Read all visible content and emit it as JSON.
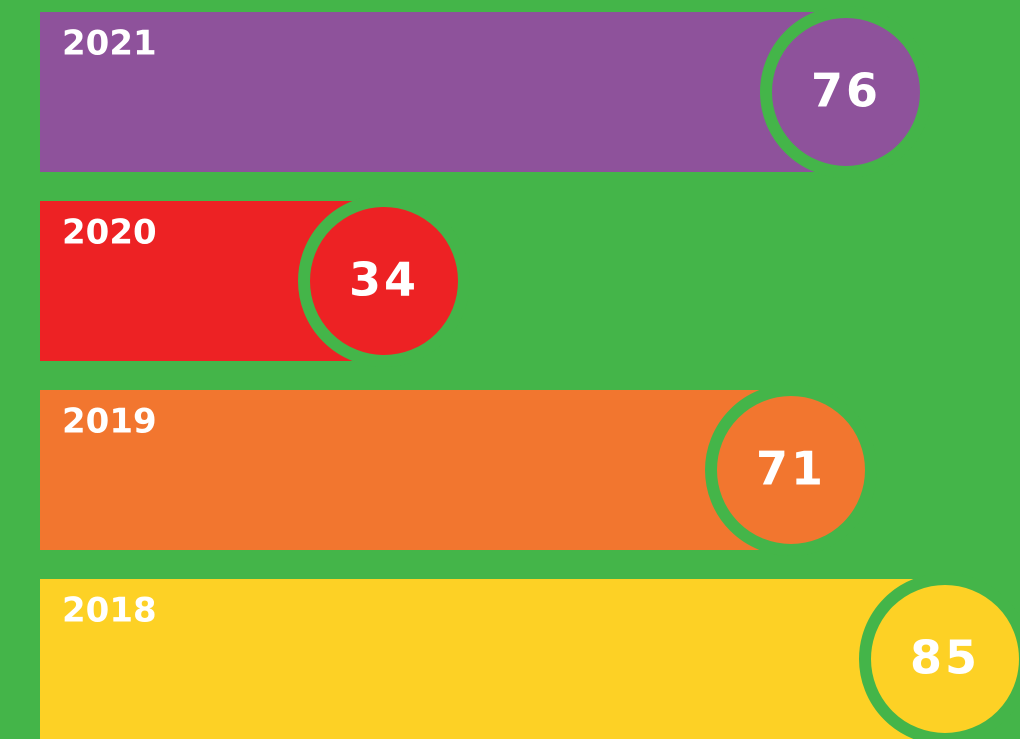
{
  "chart_data": {
    "type": "bar",
    "orientation": "horizontal",
    "categories": [
      "2021",
      "2020",
      "2019",
      "2018"
    ],
    "values": [
      76,
      34,
      71,
      85
    ],
    "colors": [
      "#8e529b",
      "#ed2224",
      "#f2762f",
      "#fdd125"
    ],
    "background": "#44b549"
  }
}
